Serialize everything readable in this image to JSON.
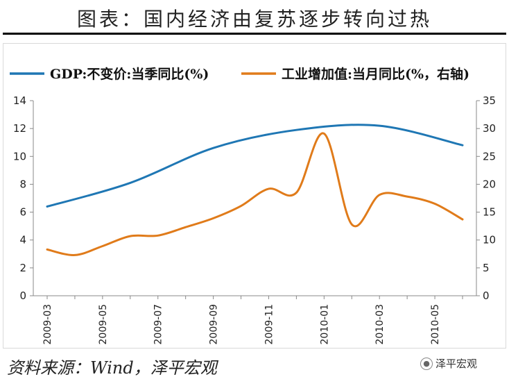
{
  "title": "图表：国内经济由复苏逐步转向过热",
  "source": "资料来源：Wind，泽平宏观",
  "watermark": {
    "text": "泽平宏观",
    "icon": "wechat-icon"
  },
  "chart_data": {
    "type": "line",
    "x_tick_labels": [
      "2009-03",
      "2009-05",
      "2009-07",
      "2009-09",
      "2009-11",
      "2010-01",
      "2010-03",
      "2010-05"
    ],
    "x": [
      "2009-03",
      "2009-04",
      "2009-05",
      "2009-06",
      "2009-07",
      "2009-08",
      "2009-09",
      "2009-10",
      "2009-11",
      "2009-12",
      "2010-01",
      "2010-02",
      "2010-03",
      "2010-04",
      "2010-05",
      "2010-06"
    ],
    "y_left": {
      "ylim": [
        0,
        14
      ],
      "ticks": [
        0,
        2,
        4,
        6,
        8,
        10,
        12,
        14
      ]
    },
    "y_right": {
      "ylim": [
        0,
        35
      ],
      "ticks": [
        0,
        5,
        10,
        15,
        20,
        25,
        30,
        35
      ]
    },
    "series": [
      {
        "name": "GDP:不变价:当季同比(%)",
        "axis": "left",
        "color": "#1f77b4",
        "x": [
          "2009-03",
          "2009-06",
          "2009-09",
          "2009-12",
          "2010-03",
          "2010-06"
        ],
        "values": [
          6.4,
          8.1,
          10.6,
          11.9,
          12.2,
          10.8
        ]
      },
      {
        "name": "工业增加值:当月同比(%，右轴)",
        "axis": "right",
        "color": "#e07b1a",
        "x": [
          "2009-03",
          "2009-04",
          "2009-05",
          "2009-06",
          "2009-07",
          "2009-08",
          "2009-09",
          "2009-10",
          "2009-11",
          "2009-12",
          "2010-01",
          "2010-02",
          "2010-03",
          "2010-04",
          "2010-05",
          "2010-06"
        ],
        "values": [
          8.3,
          7.3,
          8.9,
          10.7,
          10.8,
          12.3,
          13.9,
          16.1,
          19.2,
          18.5,
          29.1,
          12.8,
          18.1,
          17.8,
          16.5,
          13.7
        ]
      }
    ]
  }
}
